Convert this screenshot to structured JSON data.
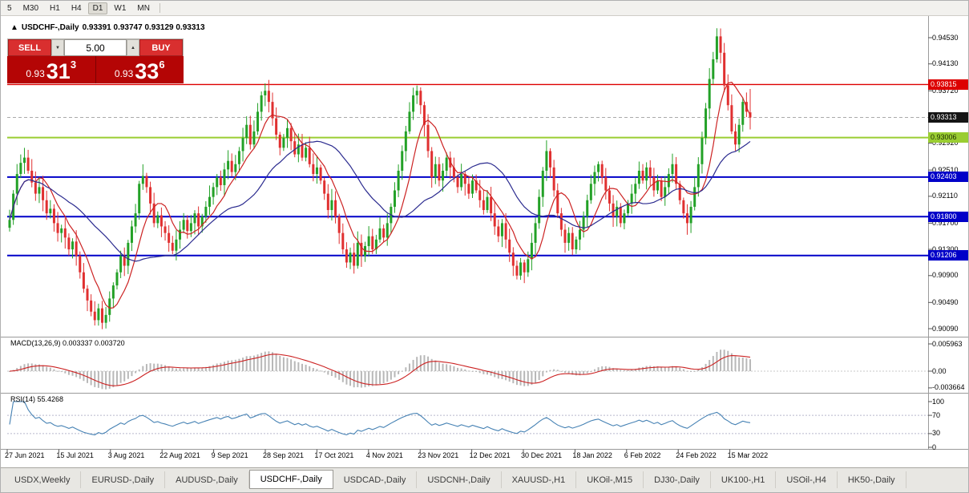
{
  "colors": {
    "bull": "#23A127",
    "bear": "#E03030",
    "ma_fast": "#CC2222",
    "ma_slow": "#2B2B8F",
    "macd_hist": "#B8B8B8",
    "macd_signal": "#CC2222",
    "rsi_line": "#4682B4",
    "level_red": "#DD0000",
    "level_green": "#9ACD32",
    "level_blue": "#0000C8",
    "badge_black": "#151515",
    "sell_buy_red": "#D92F2F",
    "price_panel_red": "#B40505"
  },
  "toolbar": {
    "timeframes": [
      "5",
      "M30",
      "H1",
      "H4",
      "D1",
      "W1",
      "MN"
    ],
    "active_timeframe": "D1"
  },
  "chart_header": {
    "arrow": "▲",
    "title": "USDCHF-,Daily",
    "ohlc_text": "0.93391 0.93747 0.93129 0.93313"
  },
  "trade_panel": {
    "sell_label": "SELL",
    "buy_label": "BUY",
    "volume": "5.00",
    "stepper_down_icon": "▼",
    "stepper_up_icon": "▲",
    "sell_price": {
      "prefix": "0.93",
      "big": "31",
      "sup": "3"
    },
    "buy_price": {
      "prefix": "0.93",
      "big": "33",
      "sup": "6"
    }
  },
  "price_axis": {
    "labels": [
      {
        "text": "0.94530",
        "price": 0.9453
      },
      {
        "text": "0.94130",
        "price": 0.9413
      },
      {
        "text": "0.93720",
        "price": 0.9372
      },
      {
        "text": "0.92920",
        "price": 0.9292
      },
      {
        "text": "0.92510",
        "price": 0.9251
      },
      {
        "text": "0.92110",
        "price": 0.9211
      },
      {
        "text": "0.91700",
        "price": 0.917
      },
      {
        "text": "0.91300",
        "price": 0.913
      },
      {
        "text": "0.90900",
        "price": 0.909
      },
      {
        "text": "0.90490",
        "price": 0.9049
      },
      {
        "text": "0.90090",
        "price": 0.9009
      }
    ],
    "badges": [
      {
        "text": "0.93815",
        "price": 0.93815,
        "style": "red"
      },
      {
        "text": "0.93313",
        "price": 0.93313,
        "style": "black"
      },
      {
        "text": "0.93006",
        "price": 0.93006,
        "style": "green"
      },
      {
        "text": "0.92403",
        "price": 0.92403,
        "style": "blue"
      },
      {
        "text": "0.91800",
        "price": 0.918,
        "style": "blue"
      },
      {
        "text": "0.91206",
        "price": 0.91206,
        "style": "blue"
      }
    ]
  },
  "levels": [
    {
      "price": 0.93815,
      "style": "red",
      "width": 1.4
    },
    {
      "price": 0.93006,
      "style": "green",
      "width": 2
    },
    {
      "price": 0.92403,
      "style": "blue",
      "width": 2
    },
    {
      "price": 0.918,
      "style": "blue",
      "width": 2
    },
    {
      "price": 0.91206,
      "style": "blue",
      "width": 2
    }
  ],
  "bid_line_price": 0.93313,
  "macd_panel": {
    "label": "MACD(13,26,9) 0.003337 0.003720",
    "axis": [
      {
        "text": "0.005963",
        "value": 0.005963
      },
      {
        "text": "0.00",
        "value": 0
      },
      {
        "text": "-0.003664",
        "value": -0.003664
      }
    ]
  },
  "rsi_panel": {
    "label": "RSI(14) 55.4268",
    "axis": [
      {
        "text": "100",
        "value": 100
      },
      {
        "text": "70",
        "value": 70
      },
      {
        "text": "30",
        "value": 30
      },
      {
        "text": "0",
        "value": 0
      }
    ],
    "guide_levels": [
      70,
      30
    ]
  },
  "date_axis": [
    "27 Jun 2021",
    "15 Jul 2021",
    "3 Aug 2021",
    "22 Aug 2021",
    "9 Sep 2021",
    "28 Sep 2021",
    "17 Oct 2021",
    "4 Nov 2021",
    "23 Nov 2021",
    "12 Dec 2021",
    "30 Dec 2021",
    "18 Jan 2022",
    "6 Feb 2022",
    "24 Feb 2022",
    "15 Mar 2022"
  ],
  "tabs": {
    "items": [
      "USDX,Weekly",
      "EURUSD-,Daily",
      "AUDUSD-,Daily",
      "USDCHF-,Daily",
      "USDCAD-,Daily",
      "USDCNH-,Daily",
      "XAUUSD-,H1",
      "UKOil-,M15",
      "DJ30-,Daily",
      "UK100-,H1",
      "USOil-,H4",
      "HK50-,Daily"
    ],
    "active": "USDCHF-,Daily"
  },
  "chart_data": {
    "type": "candlestick",
    "symbol": "USDCHF-",
    "timeframe": "Daily",
    "title": "USDCHF-,Daily",
    "current_bar": {
      "open": 0.93391,
      "high": 0.93747,
      "low": 0.93129,
      "close": 0.93313
    },
    "y_axis_range": [
      0.8998,
      0.948
    ],
    "x_range": [
      "27 Jun 2021",
      "18 Mar 2022"
    ],
    "closes": [
      0.9175,
      0.9215,
      0.9245,
      0.9262,
      0.927,
      0.925,
      0.9232,
      0.9215,
      0.9225,
      0.9205,
      0.9185,
      0.9192,
      0.917,
      0.9155,
      0.9162,
      0.9148,
      0.913,
      0.9142,
      0.912,
      0.9095,
      0.907,
      0.9052,
      0.9035,
      0.9022,
      0.904,
      0.9018,
      0.903,
      0.9055,
      0.9075,
      0.9095,
      0.912,
      0.9105,
      0.914,
      0.9165,
      0.9185,
      0.923,
      0.9242,
      0.9225,
      0.92,
      0.917,
      0.9182,
      0.9165,
      0.9155,
      0.914,
      0.9128,
      0.9145,
      0.916,
      0.9175,
      0.9158,
      0.917,
      0.9185,
      0.9165,
      0.918,
      0.9195,
      0.921,
      0.9225,
      0.924,
      0.9228,
      0.9252,
      0.9265,
      0.9248,
      0.926,
      0.928,
      0.93,
      0.932,
      0.929,
      0.931,
      0.934,
      0.9365,
      0.9372,
      0.9355,
      0.933,
      0.9305,
      0.9285,
      0.93,
      0.9315,
      0.9295,
      0.9275,
      0.929,
      0.927,
      0.9285,
      0.926,
      0.9245,
      0.9255,
      0.9235,
      0.9215,
      0.919,
      0.9205,
      0.918,
      0.9155,
      0.913,
      0.911,
      0.9125,
      0.9105,
      0.914,
      0.912,
      0.9135,
      0.915,
      0.913,
      0.9145,
      0.9162,
      0.9148,
      0.917,
      0.9195,
      0.922,
      0.925,
      0.928,
      0.931,
      0.934,
      0.9365,
      0.9372,
      0.935,
      0.932,
      0.928,
      0.924,
      0.926,
      0.9235,
      0.925,
      0.927,
      0.9255,
      0.924,
      0.9225,
      0.9245,
      0.923,
      0.9215,
      0.9235,
      0.922,
      0.9205,
      0.919,
      0.921,
      0.9185,
      0.9165,
      0.915,
      0.917,
      0.9145,
      0.9125,
      0.9105,
      0.909,
      0.911,
      0.9095,
      0.9115,
      0.914,
      0.917,
      0.921,
      0.925,
      0.928,
      0.9255,
      0.922,
      0.9185,
      0.916,
      0.914,
      0.9155,
      0.913,
      0.9145,
      0.916,
      0.918,
      0.9205,
      0.923,
      0.9248,
      0.926,
      0.924,
      0.922,
      0.92,
      0.918,
      0.9195,
      0.917,
      0.9185,
      0.92,
      0.9215,
      0.923,
      0.925,
      0.9235,
      0.9255,
      0.924,
      0.922,
      0.9235,
      0.921,
      0.9225,
      0.9245,
      0.926,
      0.923,
      0.9205,
      0.9185,
      0.917,
      0.9195,
      0.9225,
      0.926,
      0.93,
      0.9345,
      0.939,
      0.942,
      0.9455,
      0.943,
      0.938,
      0.935,
      0.931,
      0.929,
      0.932,
      0.9355,
      0.934,
      0.93313
    ],
    "overlays": [
      {
        "name": "MA fast",
        "type": "sma",
        "period": 8,
        "color_key": "ma_fast"
      },
      {
        "name": "MA slow",
        "type": "sma",
        "period": 26,
        "color_key": "ma_slow"
      }
    ],
    "indicators": [
      {
        "name": "MACD",
        "params": "13,26,9",
        "current_values": [
          0.003337,
          0.00372
        ],
        "axis_range": [
          -0.003664,
          0.005963
        ]
      },
      {
        "name": "RSI",
        "params": "14",
        "current_value": 55.4268,
        "axis_range": [
          0,
          100
        ]
      }
    ]
  }
}
